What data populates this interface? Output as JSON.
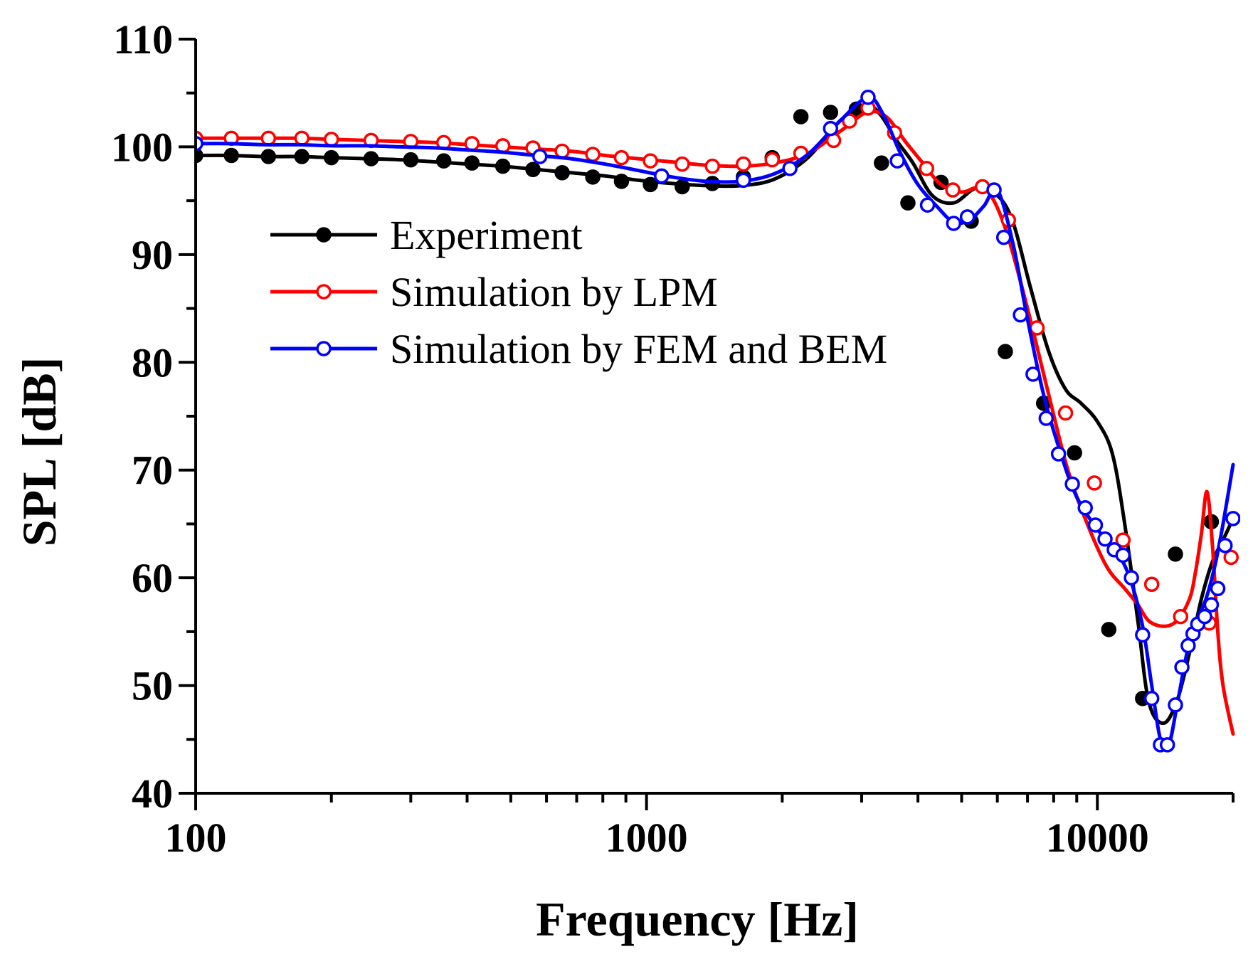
{
  "chart_data": {
    "type": "line",
    "title": "",
    "xlabel": "Frequency [Hz]",
    "ylabel": "SPL [dB]",
    "x_scale": "log",
    "xlim": [
      100,
      20000
    ],
    "ylim": [
      40,
      110
    ],
    "x_ticks": [
      100,
      1000,
      10000
    ],
    "x_tick_labels": [
      "100",
      "1000",
      "10000"
    ],
    "y_ticks": [
      40,
      50,
      60,
      70,
      80,
      90,
      100,
      110
    ],
    "y_tick_labels": [
      "40",
      "50",
      "60",
      "70",
      "80",
      "90",
      "100",
      "110"
    ],
    "legend_position": "upper-left inside",
    "series": [
      {
        "name": "Experiment",
        "color": "#000000",
        "marker": "filled-circle",
        "x": [
          100,
          119,
          142,
          170,
          200,
          240,
          285,
          340,
          405,
          480,
          570,
          680,
          810,
          960,
          1140,
          1360,
          1620,
          1920,
          2280,
          2700,
          3080,
          3300,
          3600,
          3900,
          4300,
          4800,
          5400,
          6000,
          6500,
          7100,
          7800,
          8500,
          9200,
          10000,
          10800,
          11500,
          12300,
          13000,
          14000,
          15000,
          16000,
          17000,
          18000,
          19000,
          20000
        ],
        "y": [
          99.2,
          99.2,
          99.1,
          99.1,
          99.0,
          98.9,
          98.8,
          98.6,
          98.4,
          98.2,
          97.9,
          97.6,
          97.3,
          96.9,
          96.6,
          96.4,
          96.4,
          97.0,
          99.0,
          102.5,
          103.8,
          103.0,
          100.5,
          98.5,
          95.5,
          94.8,
          96.2,
          95.5,
          93.0,
          87.0,
          81.0,
          77.5,
          76.2,
          74.5,
          71.5,
          65.0,
          56.0,
          48.5,
          46.5,
          48.5,
          53.0,
          58.0,
          61.5,
          63.5,
          65.5
        ],
        "marker_x": [
          100,
          120,
          145,
          172,
          200,
          245,
          300,
          355,
          410,
          480,
          560,
          650,
          760,
          880,
          1020,
          1200,
          1400,
          1640,
          1900,
          2200,
          2560,
          2920,
          3320,
          3800,
          4500,
          5250,
          6250,
          7600,
          8900,
          10600,
          12600,
          14900,
          17900
        ],
        "marker_y": [
          99.2,
          99.2,
          99.1,
          99.1,
          99.0,
          98.9,
          98.8,
          98.7,
          98.5,
          98.2,
          97.9,
          97.6,
          97.2,
          96.8,
          96.5,
          96.3,
          96.6,
          97.2,
          99.0,
          102.8,
          103.2,
          103.5,
          98.5,
          94.8,
          96.7,
          93.1,
          81.0,
          76.2,
          71.6,
          55.2,
          48.8,
          62.2,
          65.2
        ]
      },
      {
        "name": "Simulation by LPM",
        "color": "#ff0000",
        "marker": "open-circle",
        "x": [
          100,
          119,
          142,
          170,
          200,
          240,
          285,
          340,
          405,
          480,
          570,
          680,
          810,
          960,
          1140,
          1360,
          1620,
          1920,
          2280,
          2700,
          3080,
          3400,
          3750,
          4100,
          4500,
          5000,
          5400,
          5800,
          6300,
          7000,
          7800,
          8600,
          9500,
          10500,
          11500,
          12300,
          13000,
          14000,
          15000,
          16000,
          16500,
          17000,
          17500,
          18000,
          18500,
          19000,
          20000
        ],
        "y": [
          100.8,
          100.8,
          100.8,
          100.8,
          100.7,
          100.6,
          100.5,
          100.4,
          100.2,
          100.0,
          99.8,
          99.6,
          99.2,
          98.9,
          98.6,
          98.3,
          98.2,
          98.5,
          99.4,
          101.5,
          103.2,
          102.8,
          100.5,
          98.5,
          96.5,
          95.8,
          96.2,
          95.5,
          92.0,
          85.0,
          77.0,
          70.0,
          65.0,
          61.0,
          59.0,
          57.5,
          56.0,
          55.5,
          56.0,
          58.0,
          60.5,
          64.0,
          68.0,
          63.0,
          55.0,
          50.0,
          45.5
        ],
        "marker_x": [
          100,
          120,
          145,
          172,
          200,
          245,
          300,
          355,
          410,
          480,
          560,
          650,
          760,
          880,
          1020,
          1200,
          1400,
          1640,
          1900,
          2200,
          2600,
          2820,
          3100,
          3550,
          4180,
          4780,
          5560,
          6350,
          7350,
          8500,
          9850,
          11400,
          13200,
          15300,
          17700,
          19800
        ],
        "marker_y": [
          100.8,
          100.8,
          100.8,
          100.8,
          100.7,
          100.6,
          100.5,
          100.4,
          100.3,
          100.1,
          99.9,
          99.6,
          99.3,
          99.0,
          98.7,
          98.4,
          98.2,
          98.4,
          98.8,
          99.4,
          100.6,
          102.4,
          103.6,
          101.3,
          98.0,
          96.0,
          96.3,
          93.2,
          83.2,
          75.3,
          68.8,
          63.5,
          59.4,
          56.4,
          55.8,
          61.9
        ]
      },
      {
        "name": "Simulation by FEM and BEM",
        "color": "#0000ff",
        "marker": "open-circle",
        "x": [
          100,
          119,
          142,
          170,
          200,
          240,
          285,
          340,
          405,
          480,
          570,
          680,
          810,
          960,
          1140,
          1360,
          1620,
          1920,
          2280,
          2700,
          3100,
          3350,
          3650,
          4000,
          4400,
          4800,
          5200,
          5600,
          6000,
          6500,
          7000,
          7600,
          8300,
          9000,
          10000,
          11000,
          11800,
          12600,
          13200,
          13800,
          14400,
          15000,
          15800,
          16600,
          17400,
          18200,
          19000,
          20000
        ],
        "y": [
          100.3,
          100.3,
          100.2,
          100.2,
          100.1,
          100.1,
          100.0,
          99.9,
          99.7,
          99.5,
          99.2,
          98.9,
          98.4,
          97.8,
          97.2,
          96.8,
          96.8,
          97.5,
          99.3,
          102.5,
          104.6,
          103.0,
          99.5,
          96.5,
          94.5,
          93.0,
          93.2,
          94.5,
          96.0,
          91.0,
          84.0,
          77.0,
          71.5,
          67.5,
          64.5,
          62.5,
          60.0,
          55.5,
          50.0,
          45.0,
          44.5,
          48.0,
          53.0,
          56.0,
          58.0,
          61.0,
          65.0,
          70.5
        ],
        "marker_x": [
          100,
          580,
          1080,
          1640,
          2080,
          2560,
          3100,
          3600,
          4200,
          4800,
          5150,
          5900,
          6200,
          6750,
          7200,
          7700,
          8200,
          8800,
          9400,
          9900,
          10400,
          10900,
          11400,
          11900,
          12600,
          13200,
          13800,
          14300,
          14900,
          15400,
          15900,
          16300,
          16700,
          17300,
          17900,
          18500,
          19200,
          20000
        ],
        "marker_y": [
          100.3,
          99.1,
          97.3,
          96.9,
          98.0,
          101.7,
          104.6,
          98.7,
          94.6,
          92.9,
          93.5,
          96.0,
          91.6,
          84.4,
          78.9,
          74.8,
          71.5,
          68.7,
          66.5,
          64.9,
          63.6,
          62.6,
          62.1,
          60.0,
          54.7,
          48.8,
          44.5,
          44.5,
          48.2,
          51.7,
          53.7,
          54.8,
          55.7,
          56.4,
          57.5,
          59.0,
          63.0,
          65.5
        ]
      }
    ]
  }
}
